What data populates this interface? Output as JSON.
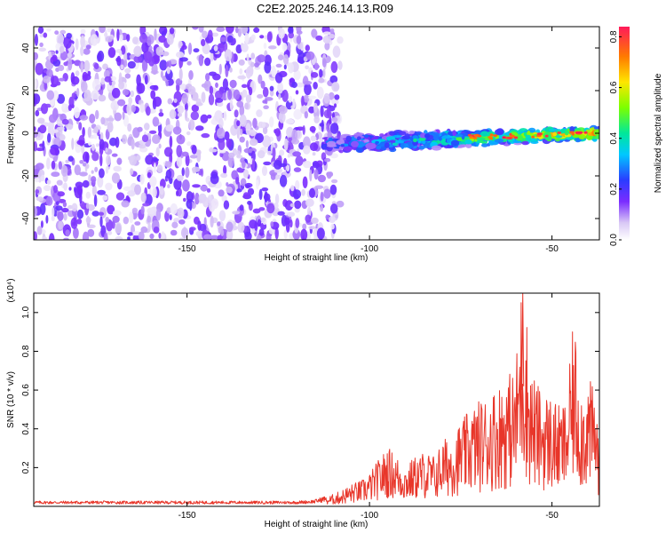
{
  "title": "C2E2.2025.246.14.13.R09",
  "chart_data": [
    {
      "type": "heatmap",
      "xlabel": "Height of straight line (km)",
      "ylabel": "Frequency (Hz)",
      "xlim": [
        -192,
        -37
      ],
      "ylim": [
        -50,
        50
      ],
      "xticks": [
        -150,
        -100,
        -50
      ],
      "yticks": [
        -40,
        -20,
        0,
        20,
        40
      ],
      "colorbar": {
        "label": "Normalized spectral amplitude",
        "range": [
          0,
          0.84
        ],
        "ticks": [
          0.0,
          0.2,
          0.4,
          0.6,
          0.8
        ]
      },
      "description_series": [
        {
          "name": "noise region",
          "x_range": [
            -192,
            -112
          ],
          "freq_range": [
            -50,
            50
          ],
          "amplitude_range": [
            0.02,
            0.12
          ]
        },
        {
          "name": "signal band",
          "x_range": [
            -112,
            -37
          ],
          "center_frequency_hz": [
            -6,
            0
          ],
          "amplitude_range": [
            0.15,
            0.84
          ]
        }
      ]
    },
    {
      "type": "line",
      "xlabel": "Height of straight line (km)",
      "ylabel": "SNR (10 * v/v)",
      "yscale_label": "(x10⁴)",
      "xlim": [
        -192,
        -37
      ],
      "ylim": [
        0,
        1.1
      ],
      "xticks": [
        -150,
        -100,
        -50
      ],
      "yticks": [
        0.2,
        0.4,
        0.6,
        0.8,
        1.0
      ],
      "color": "#e8362a",
      "x": [
        -192,
        -180,
        -170,
        -160,
        -150,
        -140,
        -130,
        -120,
        -115,
        -112,
        -108,
        -105,
        -102,
        -100,
        -98,
        -95,
        -92,
        -90,
        -88,
        -85,
        -82,
        -80,
        -78,
        -75,
        -72,
        -70,
        -68,
        -65,
        -62,
        -60,
        -58,
        -56,
        -54,
        -52,
        -50,
        -48,
        -46,
        -44,
        -42,
        -40,
        -38,
        -37
      ],
      "values": [
        0.02,
        0.02,
        0.02,
        0.02,
        0.02,
        0.02,
        0.02,
        0.02,
        0.025,
        0.04,
        0.07,
        0.1,
        0.12,
        0.15,
        0.2,
        0.27,
        0.22,
        0.18,
        0.22,
        0.25,
        0.23,
        0.3,
        0.32,
        0.38,
        0.45,
        0.48,
        0.5,
        0.55,
        0.6,
        0.62,
        1.1,
        0.65,
        0.55,
        0.52,
        0.5,
        0.45,
        0.48,
        0.85,
        0.55,
        0.58,
        0.52,
        0.3
      ]
    }
  ]
}
